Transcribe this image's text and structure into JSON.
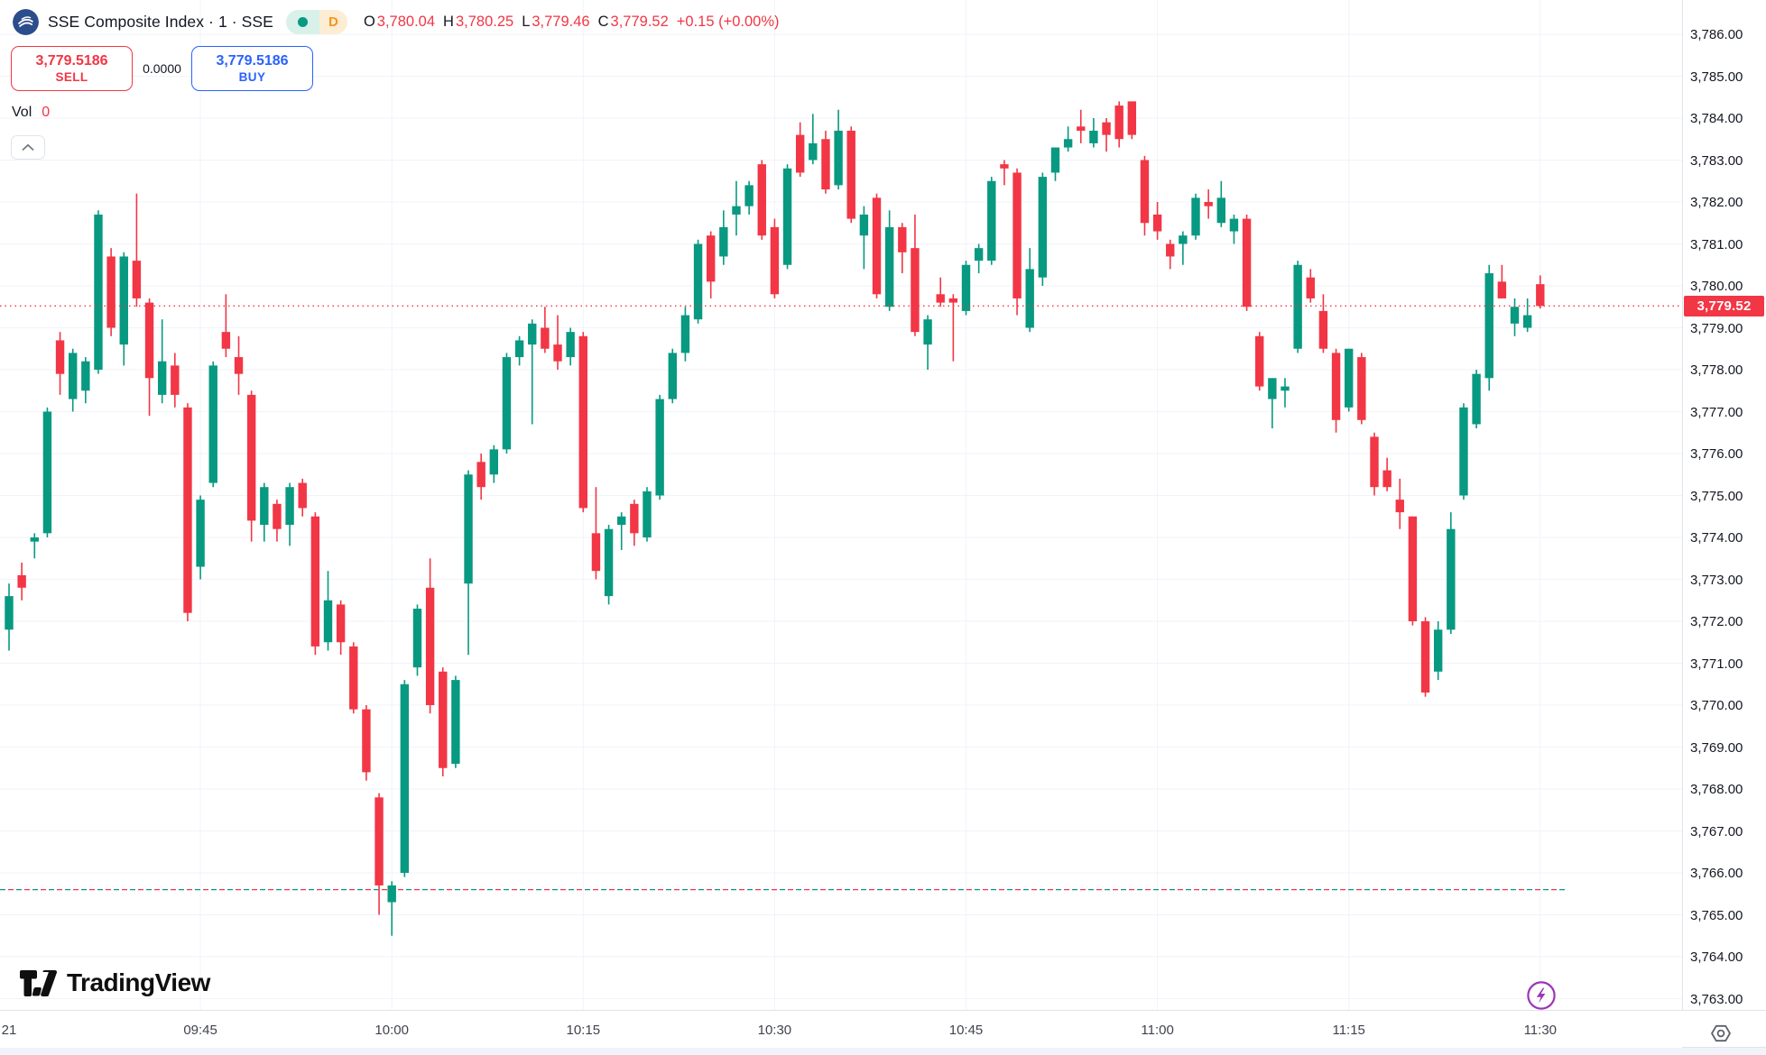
{
  "header": {
    "symbol_title": "SSE Composite Index · 1 · SSE",
    "delayed_badge": "D",
    "ohlc": {
      "o_label": "O",
      "o_value": "3,780.04",
      "h_label": "H",
      "h_value": "3,780.25",
      "l_label": "L",
      "l_value": "3,779.46",
      "c_label": "C",
      "c_value": "3,779.52",
      "change": "+0.15 (+0.00%)"
    }
  },
  "order_panel": {
    "sell_price": "3,779.5186",
    "sell_label": "SELL",
    "spread": "0.0000",
    "buy_price": "3,779.5186",
    "buy_label": "BUY"
  },
  "volume": {
    "label": "Vol",
    "value": "0"
  },
  "footer": {
    "brand": "TradingView"
  },
  "price_axis": {
    "min": 3763,
    "max": 3786,
    "step": 1,
    "last_price_label": "3,779.52"
  },
  "time_axis": {
    "labels": [
      {
        "text": "21",
        "index": 0
      },
      {
        "text": "09:45",
        "index": 15
      },
      {
        "text": "10:00",
        "index": 30
      },
      {
        "text": "10:15",
        "index": 45
      },
      {
        "text": "10:30",
        "index": 60
      },
      {
        "text": "10:45",
        "index": 75
      },
      {
        "text": "11:00",
        "index": 90
      },
      {
        "text": "11:15",
        "index": 105
      },
      {
        "text": "11:30",
        "index": 120
      }
    ]
  },
  "colors": {
    "up": "#089981",
    "down": "#f23645",
    "buy_blue": "#2962ff",
    "badge_orange": "#f7941d",
    "flash_purple": "#9c36b5",
    "grid": "#f0f3fa"
  },
  "chart_data": {
    "type": "candlestick",
    "title": "SSE Composite Index 1-minute",
    "interval": "1m",
    "session_start": "09:30",
    "ylim": [
      3763,
      3786
    ],
    "grid": true,
    "last_price": 3779.52,
    "prev_close_level": 3765.6,
    "candles_ohlc": [
      [
        3771.8,
        3772.9,
        3771.3,
        3772.6
      ],
      [
        3773.1,
        3773.4,
        3772.5,
        3772.8
      ],
      [
        3773.9,
        3774.1,
        3773.5,
        3774.0
      ],
      [
        3774.1,
        3777.1,
        3774.0,
        3777.0
      ],
      [
        3778.7,
        3778.9,
        3777.4,
        3777.9
      ],
      [
        3777.3,
        3778.5,
        3777.0,
        3778.4
      ],
      [
        3777.5,
        3778.3,
        3777.2,
        3778.2
      ],
      [
        3778.0,
        3781.8,
        3777.9,
        3781.7
      ],
      [
        3780.7,
        3780.9,
        3778.8,
        3779.0
      ],
      [
        3778.6,
        3780.8,
        3778.1,
        3780.7
      ],
      [
        3780.6,
        3782.2,
        3779.5,
        3779.7
      ],
      [
        3779.6,
        3779.7,
        3776.9,
        3777.8
      ],
      [
        3777.4,
        3779.2,
        3777.2,
        3778.2
      ],
      [
        3778.1,
        3778.4,
        3777.1,
        3777.4
      ],
      [
        3777.1,
        3777.2,
        3772.0,
        3772.2
      ],
      [
        3773.3,
        3775.0,
        3773.0,
        3774.9
      ],
      [
        3775.3,
        3778.2,
        3775.2,
        3778.1
      ],
      [
        3778.9,
        3779.8,
        3778.3,
        3778.5
      ],
      [
        3778.3,
        3778.8,
        3777.4,
        3777.9
      ],
      [
        3777.4,
        3777.5,
        3773.9,
        3774.4
      ],
      [
        3774.3,
        3775.3,
        3773.9,
        3775.2
      ],
      [
        3774.8,
        3774.9,
        3773.9,
        3774.2
      ],
      [
        3774.3,
        3775.3,
        3773.8,
        3775.2
      ],
      [
        3775.3,
        3775.4,
        3774.5,
        3774.7
      ],
      [
        3774.5,
        3774.6,
        3771.2,
        3771.4
      ],
      [
        3771.5,
        3773.2,
        3771.3,
        3772.5
      ],
      [
        3772.4,
        3772.5,
        3771.2,
        3771.5
      ],
      [
        3771.4,
        3771.5,
        3769.8,
        3769.9
      ],
      [
        3769.9,
        3770.0,
        3768.2,
        3768.4
      ],
      [
        3767.8,
        3767.9,
        3765.0,
        3765.7
      ],
      [
        3765.3,
        3765.8,
        3764.5,
        3765.7
      ],
      [
        3766.0,
        3770.6,
        3765.9,
        3770.5
      ],
      [
        3770.9,
        3772.4,
        3770.7,
        3772.3
      ],
      [
        3772.8,
        3773.5,
        3769.8,
        3770.0
      ],
      [
        3770.8,
        3770.9,
        3768.3,
        3768.5
      ],
      [
        3768.6,
        3770.7,
        3768.5,
        3770.6
      ],
      [
        3772.9,
        3775.6,
        3771.2,
        3775.5
      ],
      [
        3775.8,
        3776.0,
        3774.9,
        3775.2
      ],
      [
        3775.5,
        3776.2,
        3775.3,
        3776.1
      ],
      [
        3776.1,
        3778.4,
        3776.0,
        3778.3
      ],
      [
        3778.3,
        3778.8,
        3778.1,
        3778.7
      ],
      [
        3778.6,
        3779.2,
        3776.7,
        3779.1
      ],
      [
        3779.0,
        3779.5,
        3778.4,
        3778.5
      ],
      [
        3778.6,
        3779.3,
        3778.0,
        3778.2
      ],
      [
        3778.3,
        3779.0,
        3778.1,
        3778.9
      ],
      [
        3778.8,
        3778.9,
        3774.6,
        3774.7
      ],
      [
        3774.1,
        3775.2,
        3773.0,
        3773.2
      ],
      [
        3772.6,
        3774.3,
        3772.4,
        3774.2
      ],
      [
        3774.3,
        3774.6,
        3773.7,
        3774.5
      ],
      [
        3774.8,
        3774.9,
        3773.8,
        3774.1
      ],
      [
        3774.0,
        3775.2,
        3773.9,
        3775.1
      ],
      [
        3775.0,
        3777.4,
        3774.9,
        3777.3
      ],
      [
        3777.3,
        3778.5,
        3777.2,
        3778.4
      ],
      [
        3778.4,
        3779.5,
        3778.2,
        3779.3
      ],
      [
        3779.2,
        3781.1,
        3779.1,
        3781.0
      ],
      [
        3781.2,
        3781.3,
        3779.7,
        3780.1
      ],
      [
        3780.7,
        3781.8,
        3780.5,
        3781.4
      ],
      [
        3781.7,
        3782.5,
        3781.2,
        3781.9
      ],
      [
        3781.9,
        3782.5,
        3781.7,
        3782.4
      ],
      [
        3782.9,
        3783.0,
        3781.1,
        3781.2
      ],
      [
        3781.4,
        3781.6,
        3779.7,
        3779.8
      ],
      [
        3780.5,
        3782.9,
        3780.4,
        3782.8
      ],
      [
        3783.6,
        3783.9,
        3782.6,
        3782.7
      ],
      [
        3783.0,
        3784.1,
        3782.9,
        3783.4
      ],
      [
        3783.5,
        3783.7,
        3782.2,
        3782.3
      ],
      [
        3782.4,
        3784.2,
        3782.3,
        3783.7
      ],
      [
        3783.7,
        3783.8,
        3781.5,
        3781.6
      ],
      [
        3781.2,
        3781.9,
        3780.4,
        3781.7
      ],
      [
        3782.1,
        3782.2,
        3779.7,
        3779.8
      ],
      [
        3779.5,
        3781.8,
        3779.4,
        3781.4
      ],
      [
        3781.4,
        3781.5,
        3780.3,
        3780.8
      ],
      [
        3780.9,
        3781.7,
        3778.8,
        3778.9
      ],
      [
        3778.6,
        3779.3,
        3778.0,
        3779.2
      ],
      [
        3779.8,
        3780.2,
        3779.5,
        3779.6
      ],
      [
        3779.7,
        3779.8,
        3778.2,
        3779.6
      ],
      [
        3779.4,
        3780.6,
        3779.3,
        3780.5
      ],
      [
        3780.6,
        3781.0,
        3780.3,
        3780.9
      ],
      [
        3780.6,
        3782.6,
        3780.5,
        3782.5
      ],
      [
        3782.9,
        3783.0,
        3782.4,
        3782.8
      ],
      [
        3782.7,
        3782.8,
        3779.3,
        3779.7
      ],
      [
        3779.0,
        3780.9,
        3778.9,
        3780.4
      ],
      [
        3780.2,
        3782.7,
        3780.0,
        3782.6
      ],
      [
        3782.7,
        3783.3,
        3782.5,
        3783.3
      ],
      [
        3783.3,
        3783.8,
        3783.2,
        3783.5
      ],
      [
        3783.8,
        3784.2,
        3783.4,
        3783.7
      ],
      [
        3783.4,
        3784.0,
        3783.3,
        3783.7
      ],
      [
        3783.9,
        3784.0,
        3783.2,
        3783.6
      ],
      [
        3784.3,
        3784.4,
        3783.3,
        3783.5
      ],
      [
        3784.4,
        3784.4,
        3783.5,
        3783.6
      ],
      [
        3783.0,
        3783.1,
        3781.2,
        3781.5
      ],
      [
        3781.7,
        3782.0,
        3781.1,
        3781.3
      ],
      [
        3781.0,
        3781.1,
        3780.4,
        3780.7
      ],
      [
        3781.0,
        3781.3,
        3780.5,
        3781.2
      ],
      [
        3781.2,
        3782.2,
        3781.1,
        3782.1
      ],
      [
        3782.0,
        3782.3,
        3781.6,
        3781.9
      ],
      [
        3781.5,
        3782.5,
        3781.4,
        3782.1
      ],
      [
        3781.3,
        3781.7,
        3781.0,
        3781.6
      ],
      [
        3781.6,
        3781.7,
        3779.4,
        3779.5
      ],
      [
        3778.8,
        3778.9,
        3777.5,
        3777.6
      ],
      [
        3777.3,
        3777.8,
        3776.6,
        3777.8
      ],
      [
        3777.5,
        3777.8,
        3777.1,
        3777.6
      ],
      [
        3778.5,
        3780.6,
        3778.4,
        3780.5
      ],
      [
        3780.2,
        3780.4,
        3779.6,
        3779.7
      ],
      [
        3779.4,
        3779.8,
        3778.4,
        3778.5
      ],
      [
        3778.4,
        3778.5,
        3776.5,
        3776.8
      ],
      [
        3777.1,
        3778.5,
        3777.0,
        3778.5
      ],
      [
        3778.3,
        3778.4,
        3776.7,
        3776.8
      ],
      [
        3776.4,
        3776.5,
        3775.0,
        3775.2
      ],
      [
        3775.6,
        3775.9,
        3775.1,
        3775.2
      ],
      [
        3774.9,
        3775.4,
        3774.2,
        3774.6
      ],
      [
        3774.5,
        3774.5,
        3771.9,
        3772.0
      ],
      [
        3772.0,
        3772.1,
        3770.2,
        3770.3
      ],
      [
        3770.8,
        3772.0,
        3770.6,
        3771.8
      ],
      [
        3771.8,
        3774.6,
        3771.7,
        3774.2
      ],
      [
        3775.0,
        3777.2,
        3774.9,
        3777.1
      ],
      [
        3776.7,
        3778.0,
        3776.6,
        3777.9
      ],
      [
        3777.8,
        3780.5,
        3777.5,
        3780.3
      ],
      [
        3780.1,
        3780.5,
        3779.7,
        3779.7
      ],
      [
        3779.1,
        3779.7,
        3778.8,
        3779.5
      ],
      [
        3779.0,
        3779.7,
        3778.9,
        3779.3
      ],
      [
        3780.04,
        3780.25,
        3779.46,
        3779.52
      ]
    ]
  }
}
